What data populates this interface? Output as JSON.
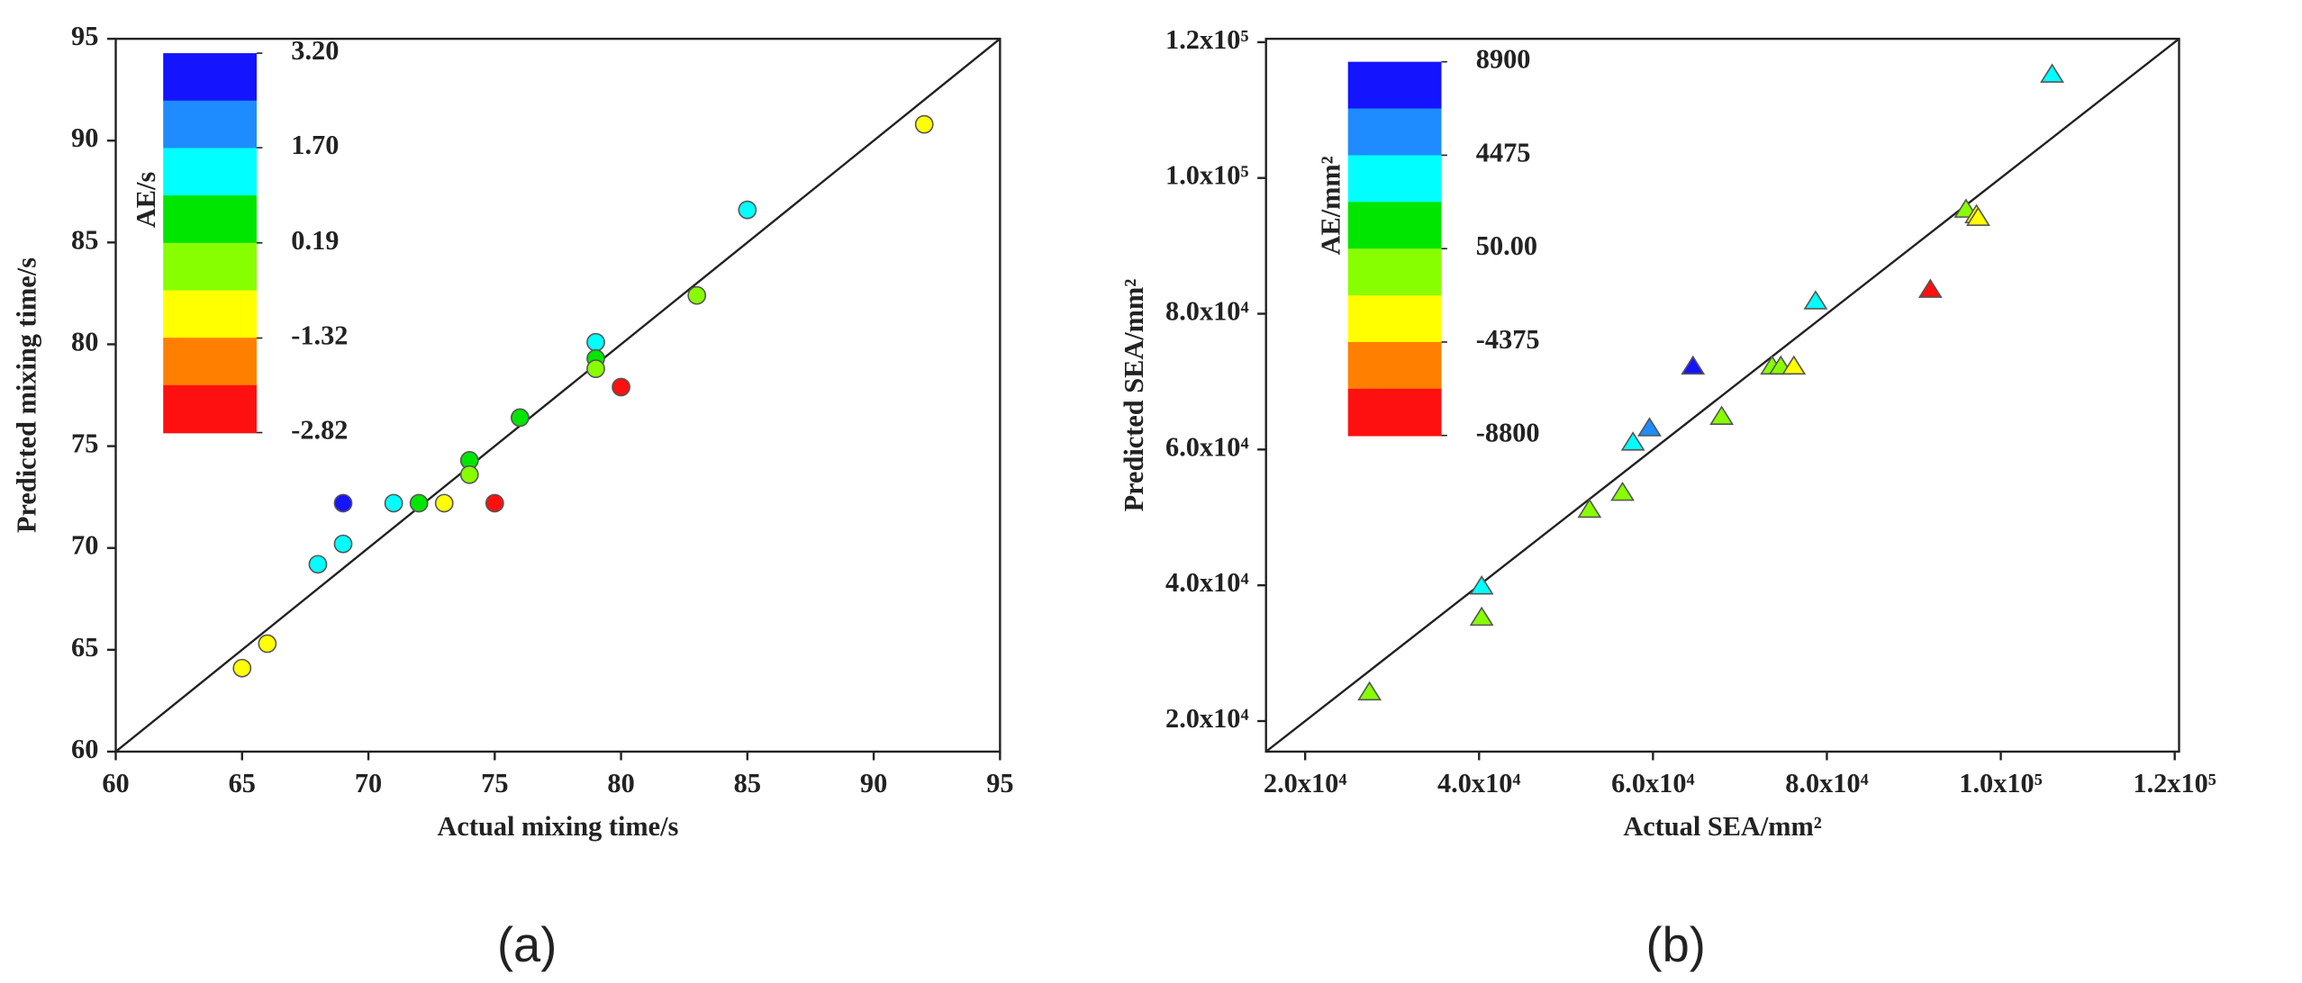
{
  "chart_data": [
    {
      "type": "scatter",
      "marker": "circle",
      "diagonal": true,
      "x_label": "Actual mixing time/s",
      "y_label": "Predicted mixing time/s",
      "caption": "(a)",
      "xlim": [
        60,
        95
      ],
      "ylim": [
        60,
        95
      ],
      "xticks": [
        60,
        65,
        70,
        75,
        80,
        85,
        90,
        95
      ],
      "yticks": [
        60,
        65,
        70,
        75,
        80,
        85,
        90,
        95
      ],
      "x": [
        65,
        66,
        68,
        69,
        69,
        71,
        72,
        73,
        74,
        74,
        75,
        76,
        79,
        79,
        79,
        80,
        83,
        85,
        92
      ],
      "values": [
        64.1,
        65.3,
        69.2,
        70.2,
        72.2,
        72.2,
        72.2,
        72.2,
        74.3,
        73.6,
        72.2,
        76.4,
        80.1,
        79.3,
        78.8,
        77.9,
        82.4,
        86.6,
        90.8
      ],
      "colors": [
        "#ffff00",
        "#ffff00",
        "#00ffff",
        "#00ffff",
        "#1414ff",
        "#00ffff",
        "#00e600",
        "#ffff00",
        "#00e600",
        "#88ff00",
        "#ff1010",
        "#00e600",
        "#00ffff",
        "#00e600",
        "#88ff00",
        "#ff1010",
        "#88ff00",
        "#00ffff",
        "#ffff00"
      ],
      "colorbar": {
        "label": "AE/s",
        "ticks": [
          {
            "value": 3.2,
            "label": "3.20"
          },
          {
            "value": 1.7,
            "label": "1.70"
          },
          0.19,
          -1.32,
          -2.82
        ],
        "colors": [
          "#1414ff",
          "#1e8cff",
          "#00ffff",
          "#00e600",
          "#88ff00",
          "#ffff00",
          "#ff8000",
          "#ff1010"
        ]
      }
    },
    {
      "type": "scatter",
      "marker": "triangle",
      "diagonal": true,
      "x_label": "Actual SEA/mm²",
      "y_label": "Predicted SEA/mm²",
      "caption": "(b)",
      "xlim": [
        15500,
        120500
      ],
      "ylim": [
        15500,
        120500
      ],
      "xticks": [
        {
          "value": 20000,
          "label": "2.0x10⁴"
        },
        {
          "value": 40000,
          "label": "4.0x10⁴"
        },
        {
          "value": 60000,
          "label": "6.0x10⁴"
        },
        {
          "value": 80000,
          "label": "8.0x10⁴"
        },
        {
          "value": 100000,
          "label": "1.0x10⁵"
        },
        {
          "value": 120000,
          "label": "1.2x10⁵"
        }
      ],
      "yticks": [
        {
          "value": 20000,
          "label": "2.0x10⁴"
        },
        {
          "value": 40000,
          "label": "4.0x10⁴"
        },
        {
          "value": 60000,
          "label": "6.0x10⁴"
        },
        {
          "value": 80000,
          "label": "8.0x10⁴"
        },
        {
          "value": 100000,
          "label": "1.0x10⁵"
        },
        {
          "value": 120000,
          "label": "1.2x10⁵"
        }
      ],
      "x": [
        27400,
        40300,
        40300,
        52700,
        56500,
        57700,
        59600,
        64600,
        67900,
        73700,
        74700,
        76200,
        78700,
        91900,
        96000,
        97200,
        97400,
        105900
      ],
      "values": [
        24200,
        35200,
        39800,
        51100,
        53600,
        61000,
        63100,
        72200,
        64800,
        72200,
        72200,
        72200,
        81800,
        83500,
        95300,
        94500,
        94100,
        115200
      ],
      "colors": [
        "#88ff00",
        "#88ff00",
        "#00ffff",
        "#88ff00",
        "#88ff00",
        "#00ffff",
        "#1e8cff",
        "#1414ff",
        "#88ff00",
        "#88ff00",
        "#88ff00",
        "#ffff00",
        "#00ffff",
        "#ff1010",
        "#88ff00",
        "#ffff00",
        "#ffff00",
        "#00ffff"
      ],
      "colorbar": {
        "label": "AE/mm²",
        "ticks": [
          8900,
          4475,
          {
            "value": 50,
            "label": "50.00"
          },
          -4375,
          -8800
        ],
        "colors": [
          "#1414ff",
          "#1e8cff",
          "#00ffff",
          "#00e600",
          "#88ff00",
          "#ffff00",
          "#ff8000",
          "#ff1010"
        ]
      }
    }
  ]
}
